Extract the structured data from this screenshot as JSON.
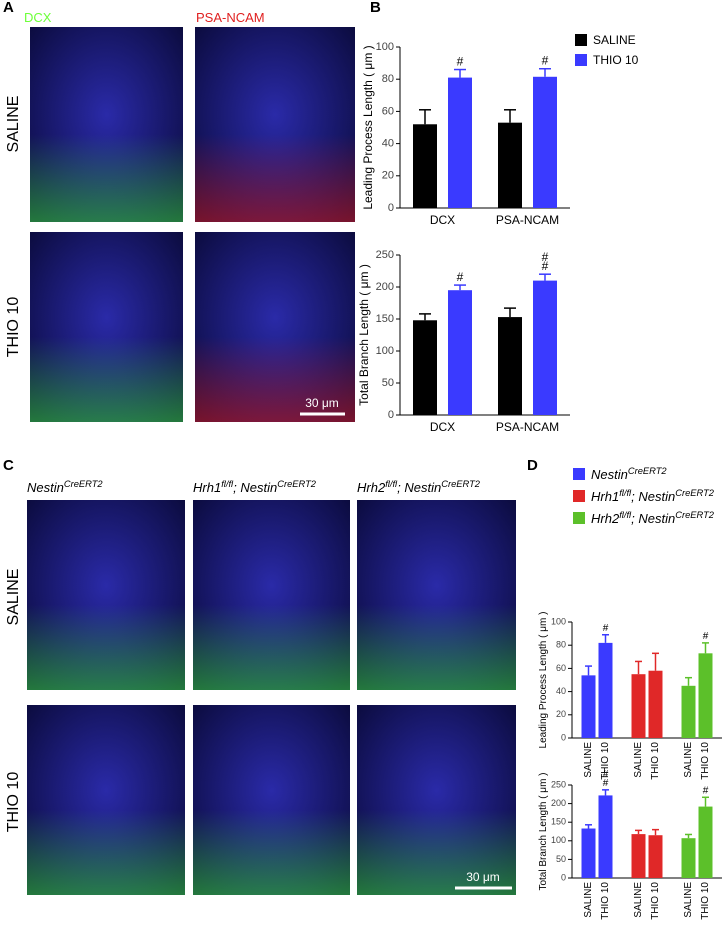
{
  "panel_a": {
    "label": "A",
    "channels": [
      "DCX",
      "PSA-NCAM"
    ],
    "rows": [
      "SALINE",
      "THIO 10"
    ],
    "scale_bar": "30 μm"
  },
  "panel_b": {
    "label": "B"
  },
  "panel_c": {
    "label": "C",
    "columns": [
      [
        "Nestin",
        "CreERT2"
      ],
      [
        "Hrh1",
        "fl/fl",
        "; Nestin",
        "CreERT2"
      ],
      [
        "Hrh2",
        "fl/fl",
        "; Nestin",
        "CreERT2"
      ]
    ],
    "rows": [
      "SALINE",
      "THIO 10"
    ],
    "scale_bar": "30 μm"
  },
  "panel_d": {
    "label": "D"
  },
  "chart_data": [
    {
      "type": "bar",
      "ylabel": "Leading Process Length ( μm )",
      "categories": [
        "DCX",
        "PSA-NCAM"
      ],
      "series": [
        {
          "name": "SALINE",
          "color": "#000000",
          "values": [
            52,
            53
          ],
          "errors": [
            9,
            8
          ]
        },
        {
          "name": "THIO 10",
          "color": "#3a3aff",
          "values": [
            81,
            81.5
          ],
          "errors": [
            5,
            5
          ],
          "annotations": [
            [
              "#"
            ],
            [
              "#"
            ]
          ]
        }
      ],
      "ylim": [
        0,
        100
      ],
      "yticks": [
        0,
        20,
        40,
        60,
        80,
        100
      ],
      "legend": "outside-right"
    },
    {
      "type": "bar",
      "ylabel": "Total Branch Length ( μm )",
      "categories": [
        "DCX",
        "PSA-NCAM"
      ],
      "series": [
        {
          "name": "SALINE",
          "color": "#000000",
          "values": [
            148,
            153
          ],
          "errors": [
            10,
            14
          ]
        },
        {
          "name": "THIO 10",
          "color": "#3a3aff",
          "values": [
            195,
            210
          ],
          "errors": [
            8,
            10
          ],
          "annotations": [
            [
              "#"
            ],
            [
              "#",
              "#"
            ]
          ]
        }
      ],
      "ylim": [
        0,
        250
      ],
      "yticks": [
        0,
        50,
        100,
        150,
        200,
        250
      ]
    },
    {
      "type": "bar",
      "ylabel": "Leading Process Length ( μm )",
      "categories": [
        "SALINE",
        "THIO 10"
      ],
      "series": [
        {
          "name": [
            "Nestin",
            "CreERT2"
          ],
          "color": "#3a3aff",
          "values": [
            54,
            82
          ],
          "errors": [
            8,
            7
          ],
          "annotations": [
            [],
            [
              "#"
            ]
          ]
        },
        {
          "name": [
            "Hrh1",
            "fl/fl",
            "; Nestin",
            "CreERT2"
          ],
          "color": "#e02828",
          "values": [
            55,
            58
          ],
          "errors": [
            11,
            15
          ]
        },
        {
          "name": [
            "Hrh2",
            "fl/fl",
            "; Nestin",
            "CreERT2"
          ],
          "color": "#5cc02a",
          "values": [
            45,
            73
          ],
          "errors": [
            7,
            9
          ],
          "annotations": [
            [],
            [
              "#"
            ]
          ]
        }
      ],
      "ylim": [
        0,
        100
      ],
      "yticks": [
        0,
        20,
        40,
        60,
        80,
        100
      ],
      "legend": "top"
    },
    {
      "type": "bar",
      "ylabel": "Total Branch Length ( μm )",
      "categories": [
        "SALINE",
        "THIO 10"
      ],
      "series": [
        {
          "name": [
            "Nestin",
            "CreERT2"
          ],
          "color": "#3a3aff",
          "values": [
            133,
            222
          ],
          "errors": [
            10,
            15
          ],
          "annotations": [
            [],
            [
              "#",
              "#"
            ]
          ]
        },
        {
          "name": [
            "Hrh1",
            "fl/fl",
            "; Nestin",
            "CreERT2"
          ],
          "color": "#e02828",
          "values": [
            118,
            115
          ],
          "errors": [
            10,
            15
          ]
        },
        {
          "name": [
            "Hrh2",
            "fl/fl",
            "; Nestin",
            "CreERT2"
          ],
          "color": "#5cc02a",
          "values": [
            107,
            192
          ],
          "errors": [
            10,
            25
          ],
          "annotations": [
            [],
            [
              "#"
            ]
          ]
        }
      ],
      "ylim": [
        0,
        250
      ],
      "yticks": [
        0,
        50,
        100,
        150,
        200,
        250
      ]
    }
  ]
}
